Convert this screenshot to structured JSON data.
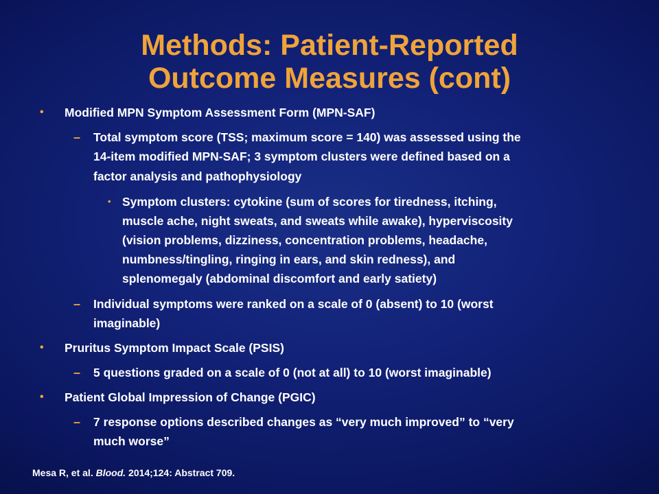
{
  "title": {
    "line1": "Methods: Patient-Reported",
    "line2": "Outcome Measures (cont)"
  },
  "markers": {
    "bullet": "•",
    "dash": "–",
    "sub_bullet": "•"
  },
  "items": {
    "mpn_saf": {
      "heading": "Modified MPN Symptom Assessment Form (MPN-SAF)",
      "tss": {
        "lines": [
          "Total symptom score (TSS; maximum score = 140) was assessed using the",
          "14-item modified MPN-SAF; 3 symptom clusters were defined based on a",
          "factor analysis and pathophysiology"
        ]
      },
      "clusters": {
        "lines": [
          "Symptom clusters: cytokine (sum of scores for tiredness, itching,",
          "muscle ache, night sweats, and sweats while awake), hyperviscosity",
          "(vision problems, dizziness, concentration problems, headache,",
          "numbness/tingling, ringing in ears, and skin redness), and",
          "splenomegaly (abdominal discomfort and early satiety)"
        ]
      },
      "individual": {
        "lines": [
          "Individual symptoms were ranked on a scale of 0 (absent) to 10 (worst",
          "imaginable)"
        ]
      }
    },
    "psis": {
      "heading": "Pruritus Symptom Impact Scale (PSIS)",
      "questions": {
        "lines": [
          "5 questions graded on a scale of 0 (not at all) to 10 (worst imaginable)"
        ]
      }
    },
    "pgic": {
      "heading": "Patient Global Impression of Change (PGIC)",
      "options": {
        "lines": [
          "7 response options described changes as “very much improved” to “very",
          "much worse”"
        ]
      }
    }
  },
  "citation": {
    "authors": "Mesa R, et al.",
    "journal": "Blood.",
    "details": "2014;124: Abstract 709."
  },
  "colors": {
    "title": "#f0a33a",
    "bullet": "#f0a33a",
    "text": "#ffffff",
    "background": "#0b1760"
  }
}
